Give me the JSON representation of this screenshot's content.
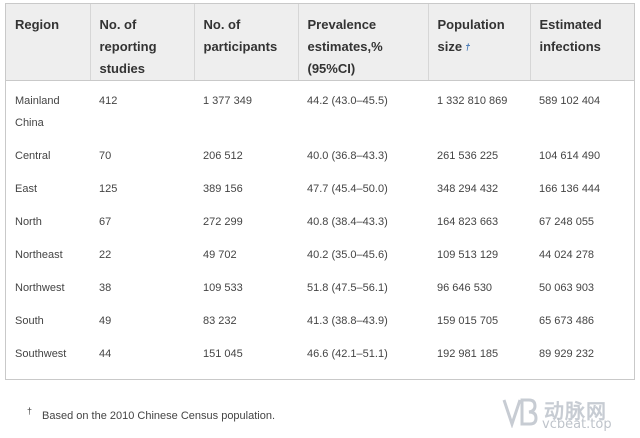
{
  "columns": [
    "Region",
    "No. of reporting studies",
    "No. of participants",
    "Prevalence estimates,% (95%CI)",
    "Population size",
    "Estimated infections"
  ],
  "population_footnote_marker": "†",
  "rows": [
    {
      "region": "Mainland China",
      "studies": "412",
      "participants": "1 377 349",
      "prevalence": "44.2 (43.0–45.5)",
      "population": "1 332 810 869",
      "infections": "589 102 404"
    },
    {
      "region": "Central",
      "studies": "70",
      "participants": "206 512",
      "prevalence": "40.0 (36.8–43.3)",
      "population": "261 536 225",
      "infections": "104 614 490"
    },
    {
      "region": "East",
      "studies": "125",
      "participants": "389 156",
      "prevalence": "47.7 (45.4–50.0)",
      "population": "348 294 432",
      "infections": "166 136 444"
    },
    {
      "region": "North",
      "studies": "67",
      "participants": "272 299",
      "prevalence": "40.8 (38.4–43.3)",
      "population": "164 823 663",
      "infections": "67 248 055"
    },
    {
      "region": "Northeast",
      "studies": "22",
      "participants": "49 702",
      "prevalence": "40.2 (35.0–45.6)",
      "population": "109 513 129",
      "infections": "44 024 278"
    },
    {
      "region": "Northwest",
      "studies": "38",
      "participants": "109 533",
      "prevalence": "51.8 (47.5–56.1)",
      "population": "96 646 530",
      "infections": "50 063 903"
    },
    {
      "region": "South",
      "studies": "49",
      "participants": "83 232",
      "prevalence": "41.3 (38.8–43.9)",
      "population": "159 015 705",
      "infections": "65 673 486"
    },
    {
      "region": "Southwest",
      "studies": "44",
      "participants": "151 045",
      "prevalence": "46.6 (42.1–51.1)",
      "population": "192 981 185",
      "infections": "89 929 232"
    }
  ],
  "footnote": {
    "marker": "†",
    "text": "Based on the 2010 Chinese Census population."
  },
  "watermark": {
    "brand": "动脉网",
    "url": "vcbeat.top"
  }
}
